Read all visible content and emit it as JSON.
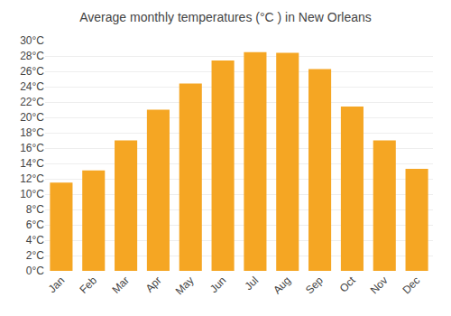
{
  "chart_data": {
    "type": "bar",
    "title": "Average monthly temperatures (°C ) in New Orleans",
    "categories": [
      "Jan",
      "Feb",
      "Mar",
      "Apr",
      "May",
      "Jun",
      "Jul",
      "Aug",
      "Sep",
      "Oct",
      "Nov",
      "Dec"
    ],
    "values": [
      11.5,
      13.1,
      17.0,
      21.0,
      24.4,
      27.4,
      28.5,
      28.4,
      26.3,
      21.4,
      17.0,
      13.3
    ],
    "color": "#F5A623",
    "ylim": [
      0,
      30
    ],
    "yticks": [
      {
        "value": 0,
        "label": "0°C"
      },
      {
        "value": 2,
        "label": "2°C"
      },
      {
        "value": 4,
        "label": "4°C"
      },
      {
        "value": 6,
        "label": "6°C"
      },
      {
        "value": 8,
        "label": "8°C"
      },
      {
        "value": 10,
        "label": "10°C"
      },
      {
        "value": 12,
        "label": "12°C"
      },
      {
        "value": 14,
        "label": "14°C"
      },
      {
        "value": 16,
        "label": "16°C"
      },
      {
        "value": 18,
        "label": "18°C"
      },
      {
        "value": 20,
        "label": "20°C"
      },
      {
        "value": 22,
        "label": "22°C"
      },
      {
        "value": 24,
        "label": "24°C"
      },
      {
        "value": 26,
        "label": "26°C"
      },
      {
        "value": 28,
        "label": "28°C"
      },
      {
        "value": 30,
        "label": "30°C"
      }
    ],
    "grid": true
  }
}
